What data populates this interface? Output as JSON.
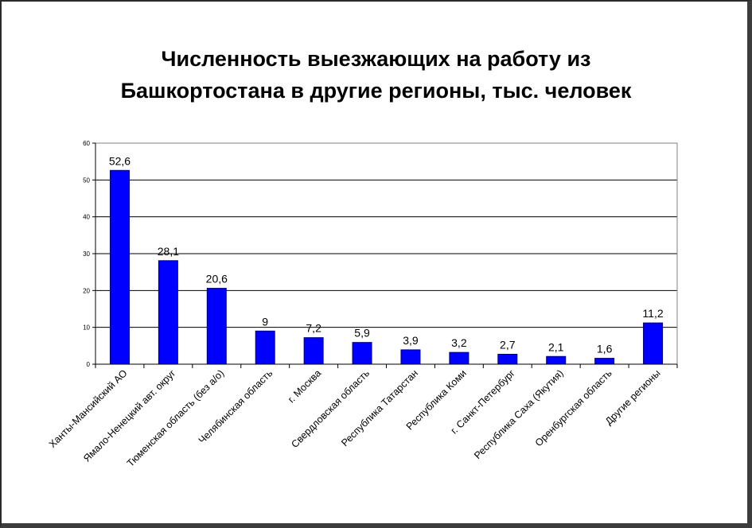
{
  "chart_data": {
    "type": "bar",
    "title_lines": [
      "Численность выезжающих на работу из",
      "Башкортостана в другие регионы, тыс. человек"
    ],
    "categories": [
      "Ханты-Мансийский АО",
      "Ямало-Ненецкий авт. округ",
      "Тюменская область (без а/о)",
      "Челябинская область",
      "г. Москва",
      "Свердловская область",
      "Республика Татарстан",
      "Республика Коми",
      "г. Санкт-Петербург",
      "Республика Саха (Якутия)",
      "Оренбургская область",
      "Другие регионы"
    ],
    "values": [
      52.6,
      28.1,
      20.6,
      9,
      7.2,
      5.9,
      3.9,
      3.2,
      2.7,
      2.1,
      1.6,
      11.2
    ],
    "value_labels": [
      "52,6",
      "28,1",
      "20,6",
      "9",
      "7,2",
      "5,9",
      "3,9",
      "3,2",
      "2,7",
      "2,1",
      "1,6",
      "11,2"
    ],
    "y_ticks": [
      0,
      10,
      20,
      30,
      40,
      50,
      60
    ],
    "ylim": [
      0,
      60
    ],
    "grid": true,
    "legend": "none",
    "bar_color": "#0000ff",
    "bar_border_color": "#000080"
  }
}
